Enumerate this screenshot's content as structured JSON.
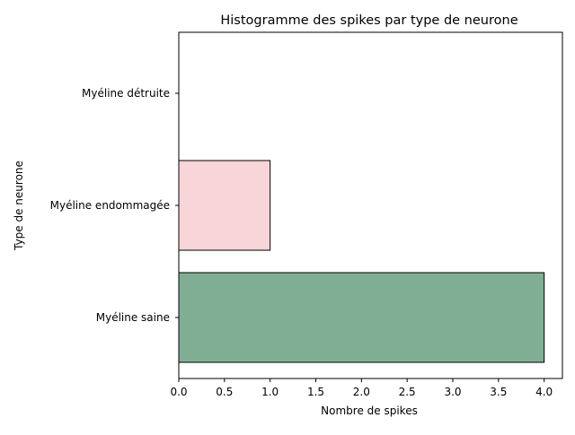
{
  "chart_data": {
    "type": "bar",
    "orientation": "horizontal",
    "title": "Histogramme des spikes par type de neurone",
    "xlabel": "Nombre de spikes",
    "ylabel": "Type de neurone",
    "categories": [
      "Myéline saine",
      "Myéline endommagée",
      "Myéline détruite"
    ],
    "values": [
      4,
      1,
      0
    ],
    "colors": [
      "#80ae95",
      "#f7d5d8",
      "#ffffff"
    ],
    "edge_color": "#000000",
    "xlim": [
      0,
      4.2
    ],
    "xticks": [
      "0.0",
      "0.5",
      "1.0",
      "1.5",
      "2.0",
      "2.5",
      "3.0",
      "3.5",
      "4.0"
    ],
    "grid": false
  }
}
